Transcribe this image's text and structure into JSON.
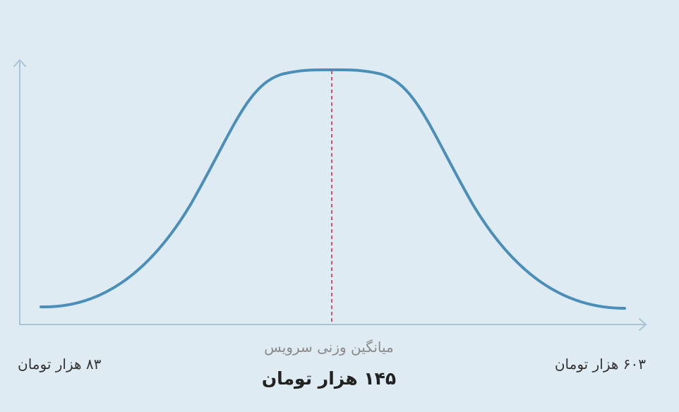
{
  "labels": {
    "min": "۸۳ هزار تومان",
    "max": "۶۰۳ هزار تومان",
    "mean_caption": "میانگین وزنی سرویس",
    "mean_value": "۱۴۵ هزار تومان"
  }
}
